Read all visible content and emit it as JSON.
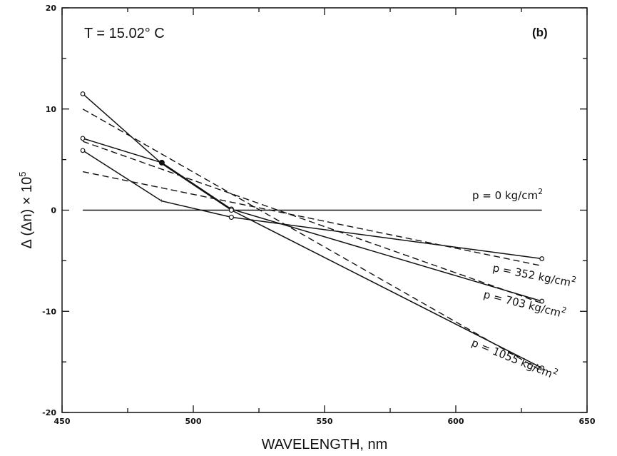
{
  "chart_data": {
    "type": "line",
    "xlabel": "WAVELENGTH, nm",
    "ylabel_parts": {
      "prefix": "Δ (Δn) × 10",
      "exp": "5"
    },
    "xlim": [
      450,
      650
    ],
    "ylim": [
      -20,
      20
    ],
    "x_ticks": [
      450,
      500,
      550,
      600,
      650
    ],
    "y_ticks": [
      -20,
      -10,
      0,
      10,
      20
    ],
    "x_tick_labels": [
      "450",
      "500",
      "550",
      "600",
      "650"
    ],
    "y_tick_labels": [
      "-20",
      "-10",
      "0",
      "10",
      "20"
    ],
    "grid": false,
    "annotations": {
      "temperature": "T = 15.02° C",
      "panel": "(b)"
    },
    "series": [
      {
        "label_parts": {
          "text": "p = 0 kg/cm",
          "exp": "2"
        },
        "style": "solid",
        "points": [
          [
            457.9,
            0
          ],
          [
            632.8,
            0
          ]
        ]
      },
      {
        "label_parts": {
          "text": "p = 352 kg/cm",
          "exp": "2"
        },
        "style": "solid",
        "points": [
          [
            457.9,
            5.9
          ],
          [
            488.0,
            0.9
          ],
          [
            514.5,
            -0.7
          ],
          [
            632.8,
            -4.8
          ]
        ]
      },
      {
        "label_parts": {
          "text": "p = 703 kg/cm",
          "exp": "2"
        },
        "style": "solid",
        "points": [
          [
            457.9,
            7.1
          ],
          [
            488.0,
            4.7
          ],
          [
            514.5,
            0.1
          ],
          [
            632.8,
            -9.0
          ]
        ]
      },
      {
        "label_parts": {
          "text": "p = 1055 kg/cm",
          "exp": "2"
        },
        "style": "solid",
        "points": [
          [
            457.9,
            11.5
          ],
          [
            488.0,
            4.6
          ],
          [
            514.5,
            0.0
          ],
          [
            632.8,
            -15.6
          ]
        ]
      },
      {
        "style": "dashed",
        "points": [
          [
            457.9,
            3.8
          ],
          [
            632.8,
            -5.5
          ]
        ]
      },
      {
        "style": "dashed",
        "points": [
          [
            457.9,
            6.8
          ],
          [
            632.8,
            -9.2
          ]
        ]
      },
      {
        "style": "dashed",
        "points": [
          [
            457.9,
            10.0
          ],
          [
            632.8,
            -15.9
          ]
        ]
      }
    ]
  }
}
